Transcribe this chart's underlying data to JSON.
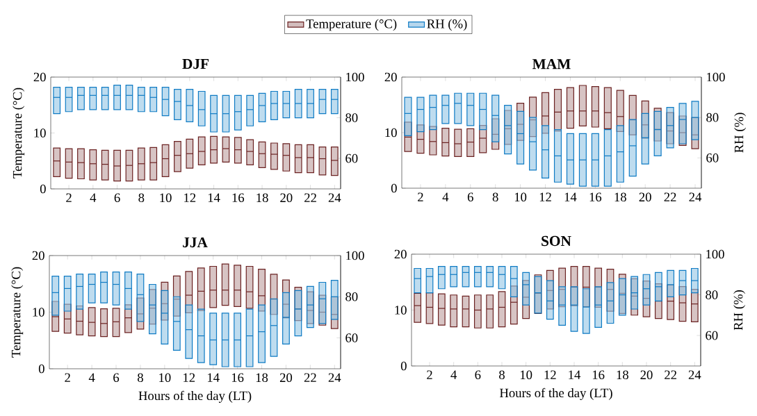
{
  "chart_data": [
    {
      "type": "box",
      "title": "DJF",
      "ylabel": "Temperature (°C)",
      "y2label": null,
      "legend": "top",
      "x": [
        1,
        2,
        3,
        4,
        5,
        6,
        7,
        8,
        9,
        10,
        11,
        12,
        13,
        14,
        15,
        16,
        17,
        18,
        19,
        20,
        21,
        22,
        23,
        24
      ],
      "xlim": [
        0.5,
        24.5
      ],
      "xticks": [
        2,
        4,
        6,
        8,
        10,
        12,
        14,
        16,
        18,
        20,
        22,
        24
      ],
      "ylim": [
        0,
        20
      ],
      "yticks": [
        0,
        10,
        20
      ],
      "y2lim": [
        45,
        100
      ],
      "y2ticks": [
        60,
        80,
        100
      ],
      "series": [
        {
          "name": "Temperature (°C)",
          "color": "#6b2222",
          "boxes": [
            {
              "low": 2.2,
              "q1": 2.2,
              "median": 5.0,
              "q3": 7.3,
              "high": 7.3
            },
            {
              "low": 1.9,
              "q1": 1.9,
              "median": 4.8,
              "q3": 7.2,
              "high": 7.2
            },
            {
              "low": 1.8,
              "q1": 1.8,
              "median": 4.7,
              "q3": 7.2,
              "high": 7.2
            },
            {
              "low": 1.6,
              "q1": 1.6,
              "median": 4.5,
              "q3": 7.0,
              "high": 7.0
            },
            {
              "low": 1.6,
              "q1": 1.6,
              "median": 4.4,
              "q3": 6.9,
              "high": 6.9
            },
            {
              "low": 1.4,
              "q1": 1.4,
              "median": 4.1,
              "q3": 6.9,
              "high": 6.9
            },
            {
              "low": 1.4,
              "q1": 1.4,
              "median": 4.2,
              "q3": 6.9,
              "high": 6.9
            },
            {
              "low": 1.6,
              "q1": 1.6,
              "median": 4.5,
              "q3": 7.3,
              "high": 7.3
            },
            {
              "low": 1.6,
              "q1": 1.6,
              "median": 4.7,
              "q3": 7.4,
              "high": 7.4
            },
            {
              "low": 2.2,
              "q1": 2.2,
              "median": 5.4,
              "q3": 7.9,
              "high": 7.9
            },
            {
              "low": 3.1,
              "q1": 3.1,
              "median": 6.0,
              "q3": 8.5,
              "high": 8.5
            },
            {
              "low": 3.7,
              "q1": 3.7,
              "median": 6.3,
              "q3": 8.9,
              "high": 8.9
            },
            {
              "low": 4.3,
              "q1": 4.3,
              "median": 6.7,
              "q3": 9.3,
              "high": 9.3
            },
            {
              "low": 4.6,
              "q1": 4.6,
              "median": 7.0,
              "q3": 9.4,
              "high": 9.4
            },
            {
              "low": 4.8,
              "q1": 4.8,
              "median": 7.2,
              "q3": 9.3,
              "high": 9.3
            },
            {
              "low": 4.6,
              "q1": 4.6,
              "median": 7.0,
              "q3": 9.2,
              "high": 9.2
            },
            {
              "low": 4.3,
              "q1": 4.3,
              "median": 6.7,
              "q3": 8.8,
              "high": 8.8
            },
            {
              "low": 3.8,
              "q1": 3.8,
              "median": 6.3,
              "q3": 8.4,
              "high": 8.4
            },
            {
              "low": 3.5,
              "q1": 3.5,
              "median": 6.2,
              "q3": 8.2,
              "high": 8.2
            },
            {
              "low": 3.2,
              "q1": 3.2,
              "median": 6.0,
              "q3": 8.1,
              "high": 8.1
            },
            {
              "low": 2.9,
              "q1": 2.9,
              "median": 5.6,
              "q3": 7.9,
              "high": 7.9
            },
            {
              "low": 2.9,
              "q1": 2.9,
              "median": 5.6,
              "q3": 7.9,
              "high": 7.9
            },
            {
              "low": 2.5,
              "q1": 2.5,
              "median": 5.4,
              "q3": 7.5,
              "high": 7.5
            },
            {
              "low": 2.4,
              "q1": 2.4,
              "median": 5.1,
              "q3": 7.5,
              "high": 7.5
            }
          ]
        },
        {
          "name": "RH (%)",
          "color": "#0f7bc4",
          "axis": "y2",
          "boxes": [
            {
              "low": 82,
              "q1": 82,
              "median": 90,
              "q3": 95,
              "high": 95
            },
            {
              "low": 83,
              "q1": 83,
              "median": 90,
              "q3": 95,
              "high": 95
            },
            {
              "low": 84,
              "q1": 84,
              "median": 91,
              "q3": 95,
              "high": 95
            },
            {
              "low": 84,
              "q1": 84,
              "median": 91,
              "q3": 95,
              "high": 95
            },
            {
              "low": 84,
              "q1": 84,
              "median": 91,
              "q3": 95,
              "high": 95
            },
            {
              "low": 84,
              "q1": 84,
              "median": 91,
              "q3": 96,
              "high": 96
            },
            {
              "low": 84,
              "q1": 84,
              "median": 91,
              "q3": 96,
              "high": 96
            },
            {
              "low": 83,
              "q1": 83,
              "median": 91,
              "q3": 95,
              "high": 95
            },
            {
              "low": 83,
              "q1": 83,
              "median": 90,
              "q3": 95,
              "high": 95
            },
            {
              "low": 81,
              "q1": 81,
              "median": 89,
              "q3": 95,
              "high": 95
            },
            {
              "low": 79,
              "q1": 79,
              "median": 88,
              "q3": 94,
              "high": 94
            },
            {
              "low": 78,
              "q1": 78,
              "median": 86,
              "q3": 94,
              "high": 94
            },
            {
              "low": 76,
              "q1": 76,
              "median": 84,
              "q3": 93,
              "high": 93
            },
            {
              "low": 73,
              "q1": 73,
              "median": 82,
              "q3": 91,
              "high": 91
            },
            {
              "low": 73,
              "q1": 73,
              "median": 82,
              "q3": 91,
              "high": 91
            },
            {
              "low": 74,
              "q1": 74,
              "median": 83,
              "q3": 91,
              "high": 91
            },
            {
              "low": 76,
              "q1": 76,
              "median": 84,
              "q3": 91,
              "high": 91
            },
            {
              "low": 78,
              "q1": 78,
              "median": 86,
              "q3": 92,
              "high": 92
            },
            {
              "low": 79,
              "q1": 79,
              "median": 87,
              "q3": 93,
              "high": 93
            },
            {
              "low": 80,
              "q1": 80,
              "median": 87,
              "q3": 93,
              "high": 93
            },
            {
              "low": 80,
              "q1": 80,
              "median": 87,
              "q3": 94,
              "high": 94
            },
            {
              "low": 80,
              "q1": 80,
              "median": 87,
              "q3": 94,
              "high": 94
            },
            {
              "low": 82,
              "q1": 82,
              "median": 89,
              "q3": 94,
              "high": 94
            },
            {
              "low": 82,
              "q1": 82,
              "median": 89,
              "q3": 94,
              "high": 94
            }
          ]
        }
      ]
    },
    {
      "type": "box",
      "title": "MAM",
      "y2label": "RH (%)",
      "x": [
        1,
        2,
        3,
        4,
        5,
        6,
        7,
        8,
        9,
        10,
        11,
        12,
        13,
        14,
        15,
        16,
        17,
        18,
        19,
        20,
        21,
        22,
        23,
        24
      ],
      "xlim": [
        0.5,
        24.5
      ],
      "xticks": [
        2,
        4,
        6,
        8,
        10,
        12,
        14,
        16,
        18,
        20,
        22,
        24
      ],
      "ylim": [
        0,
        20
      ],
      "yticks": [
        0,
        10,
        20
      ],
      "y2lim": [
        45,
        100
      ],
      "y2ticks": [
        60,
        80,
        100
      ],
      "series": [
        {
          "color": "#6b2222",
          "boxes": [
            {
              "low": 6.6,
              "q1": 6.6,
              "median": 9.2,
              "q3": 11.9,
              "high": 11.9
            },
            {
              "low": 6.3,
              "q1": 6.3,
              "median": 8.8,
              "q3": 11.4,
              "high": 11.4
            },
            {
              "low": 6.0,
              "q1": 6.0,
              "median": 8.4,
              "q3": 11.1,
              "high": 11.1
            },
            {
              "low": 5.8,
              "q1": 5.8,
              "median": 8.2,
              "q3": 10.8,
              "high": 10.8
            },
            {
              "low": 5.7,
              "q1": 5.7,
              "median": 8.0,
              "q3": 10.6,
              "high": 10.6
            },
            {
              "low": 5.7,
              "q1": 5.7,
              "median": 8.3,
              "q3": 10.7,
              "high": 10.7
            },
            {
              "low": 6.4,
              "q1": 6.4,
              "median": 9.0,
              "q3": 11.3,
              "high": 11.3
            },
            {
              "low": 7.0,
              "q1": 7.0,
              "median": 9.7,
              "q3": 12.5,
              "high": 12.5
            },
            {
              "low": 7.9,
              "q1": 7.9,
              "median": 10.7,
              "q3": 14.0,
              "high": 14.0
            },
            {
              "low": 8.6,
              "q1": 8.6,
              "median": 11.5,
              "q3": 15.3,
              "high": 15.3
            },
            {
              "low": 9.3,
              "q1": 9.3,
              "median": 12.3,
              "q3": 16.4,
              "high": 16.4
            },
            {
              "low": 9.9,
              "q1": 9.9,
              "median": 13.0,
              "q3": 17.2,
              "high": 17.2
            },
            {
              "low": 10.3,
              "q1": 10.3,
              "median": 13.7,
              "q3": 17.8,
              "high": 17.8
            },
            {
              "low": 10.8,
              "q1": 10.8,
              "median": 13.9,
              "q3": 18.1,
              "high": 18.1
            },
            {
              "low": 11.2,
              "q1": 11.2,
              "median": 13.9,
              "q3": 18.5,
              "high": 18.5
            },
            {
              "low": 11.0,
              "q1": 11.0,
              "median": 13.9,
              "q3": 18.3,
              "high": 18.3
            },
            {
              "low": 10.7,
              "q1": 10.7,
              "median": 13.6,
              "q3": 18.1,
              "high": 18.1
            },
            {
              "low": 10.2,
              "q1": 10.2,
              "median": 12.9,
              "q3": 17.6,
              "high": 17.6
            },
            {
              "low": 9.6,
              "q1": 9.6,
              "median": 12.3,
              "q3": 16.7,
              "high": 16.7
            },
            {
              "low": 9.0,
              "q1": 9.0,
              "median": 11.4,
              "q3": 15.7,
              "high": 15.7
            },
            {
              "low": 8.5,
              "q1": 8.5,
              "median": 10.6,
              "q3": 14.4,
              "high": 14.4
            },
            {
              "low": 8.0,
              "q1": 8.0,
              "median": 10.3,
              "q3": 13.6,
              "high": 13.6
            },
            {
              "low": 7.7,
              "q1": 7.7,
              "median": 10.0,
              "q3": 13.0,
              "high": 13.0
            },
            {
              "low": 7.1,
              "q1": 7.1,
              "median": 9.6,
              "q3": 12.7,
              "high": 12.7
            }
          ]
        },
        {
          "color": "#0f7bc4",
          "axis": "y2",
          "boxes": [
            {
              "low": 71,
              "q1": 71,
              "median": 82,
              "q3": 90,
              "high": 90
            },
            {
              "low": 73,
              "q1": 73,
              "median": 84,
              "q3": 90,
              "high": 90
            },
            {
              "low": 74,
              "q1": 74,
              "median": 85,
              "q3": 91,
              "high": 91
            },
            {
              "low": 77,
              "q1": 77,
              "median": 86,
              "q3": 91,
              "high": 91
            },
            {
              "low": 77,
              "q1": 77,
              "median": 87,
              "q3": 92,
              "high": 92
            },
            {
              "low": 76,
              "q1": 76,
              "median": 86,
              "q3": 92,
              "high": 92
            },
            {
              "low": 74,
              "q1": 74,
              "median": 84,
              "q3": 92,
              "high": 92
            },
            {
              "low": 68,
              "q1": 68,
              "median": 81,
              "q3": 91,
              "high": 91
            },
            {
              "low": 62,
              "q1": 62,
              "median": 76,
              "q3": 86,
              "high": 86
            },
            {
              "low": 57,
              "q1": 57,
              "median": 72,
              "q3": 83,
              "high": 83
            },
            {
              "low": 54,
              "q1": 54,
              "median": 68,
              "q3": 80,
              "high": 80
            },
            {
              "low": 50,
              "q1": 50,
              "median": 64,
              "q3": 76,
              "high": 76
            },
            {
              "low": 48,
              "q1": 48,
              "median": 61,
              "q3": 74,
              "high": 74
            },
            {
              "low": 47,
              "q1": 47,
              "median": 59,
              "q3": 72,
              "high": 72
            },
            {
              "low": 46,
              "q1": 46,
              "median": 59,
              "q3": 72,
              "high": 72
            },
            {
              "low": 46,
              "q1": 46,
              "median": 59,
              "q3": 72,
              "high": 72
            },
            {
              "low": 46,
              "q1": 46,
              "median": 61,
              "q3": 74,
              "high": 74
            },
            {
              "low": 48,
              "q1": 48,
              "median": 63,
              "q3": 76,
              "high": 76
            },
            {
              "low": 51,
              "q1": 51,
              "median": 66,
              "q3": 79,
              "high": 79
            },
            {
              "low": 57,
              "q1": 57,
              "median": 70,
              "q3": 82,
              "high": 82
            },
            {
              "low": 61,
              "q1": 61,
              "median": 74,
              "q3": 83,
              "high": 83
            },
            {
              "low": 65,
              "q1": 65,
              "median": 76,
              "q3": 85,
              "high": 85
            },
            {
              "low": 67,
              "q1": 67,
              "median": 79,
              "q3": 87,
              "high": 87
            },
            {
              "low": 69,
              "q1": 69,
              "median": 80,
              "q3": 88,
              "high": 88
            }
          ]
        }
      ]
    },
    {
      "type": "box",
      "title": "JJA",
      "ylabel": "Temperature (°C)",
      "xlabel": "Hours of the day (LT)",
      "x": [
        1,
        2,
        3,
        4,
        5,
        6,
        7,
        8,
        9,
        10,
        11,
        12,
        13,
        14,
        15,
        16,
        17,
        18,
        19,
        20,
        21,
        22,
        23,
        24
      ],
      "xlim": [
        0.5,
        24.5
      ],
      "xticks": [
        2,
        4,
        6,
        8,
        10,
        12,
        14,
        16,
        18,
        20,
        22,
        24
      ],
      "ylim": [
        0,
        20
      ],
      "yticks": [
        0,
        10,
        20
      ],
      "y2lim": [
        45,
        100
      ],
      "y2ticks": [
        60,
        80,
        100
      ],
      "series": [
        {
          "color": "#6b2222",
          "boxes": [
            {
              "low": 6.6,
              "q1": 6.6,
              "median": 9.2,
              "q3": 11.9,
              "high": 11.9
            },
            {
              "low": 6.3,
              "q1": 6.3,
              "median": 8.8,
              "q3": 11.4,
              "high": 11.4
            },
            {
              "low": 6.0,
              "q1": 6.0,
              "median": 8.4,
              "q3": 11.1,
              "high": 11.1
            },
            {
              "low": 5.8,
              "q1": 5.8,
              "median": 8.2,
              "q3": 10.8,
              "high": 10.8
            },
            {
              "low": 5.7,
              "q1": 5.7,
              "median": 8.0,
              "q3": 10.6,
              "high": 10.6
            },
            {
              "low": 5.7,
              "q1": 5.7,
              "median": 8.3,
              "q3": 10.7,
              "high": 10.7
            },
            {
              "low": 6.4,
              "q1": 6.4,
              "median": 9.0,
              "q3": 11.3,
              "high": 11.3
            },
            {
              "low": 7.0,
              "q1": 7.0,
              "median": 9.7,
              "q3": 12.5,
              "high": 12.5
            },
            {
              "low": 7.9,
              "q1": 7.9,
              "median": 10.7,
              "q3": 14.0,
              "high": 14.0
            },
            {
              "low": 8.6,
              "q1": 8.6,
              "median": 11.5,
              "q3": 15.3,
              "high": 15.3
            },
            {
              "low": 9.3,
              "q1": 9.3,
              "median": 12.3,
              "q3": 16.4,
              "high": 16.4
            },
            {
              "low": 9.9,
              "q1": 9.9,
              "median": 13.0,
              "q3": 17.2,
              "high": 17.2
            },
            {
              "low": 10.3,
              "q1": 10.3,
              "median": 13.7,
              "q3": 17.8,
              "high": 17.8
            },
            {
              "low": 10.8,
              "q1": 10.8,
              "median": 13.9,
              "q3": 18.1,
              "high": 18.1
            },
            {
              "low": 11.2,
              "q1": 11.2,
              "median": 13.9,
              "q3": 18.5,
              "high": 18.5
            },
            {
              "low": 11.0,
              "q1": 11.0,
              "median": 13.9,
              "q3": 18.3,
              "high": 18.3
            },
            {
              "low": 10.7,
              "q1": 10.7,
              "median": 13.6,
              "q3": 18.1,
              "high": 18.1
            },
            {
              "low": 10.2,
              "q1": 10.2,
              "median": 12.9,
              "q3": 17.6,
              "high": 17.6
            },
            {
              "low": 9.6,
              "q1": 9.6,
              "median": 12.3,
              "q3": 16.7,
              "high": 16.7
            },
            {
              "low": 9.0,
              "q1": 9.0,
              "median": 11.4,
              "q3": 15.7,
              "high": 15.7
            },
            {
              "low": 8.5,
              "q1": 8.5,
              "median": 10.6,
              "q3": 14.4,
              "high": 14.4
            },
            {
              "low": 8.0,
              "q1": 8.0,
              "median": 10.3,
              "q3": 13.6,
              "high": 13.6
            },
            {
              "low": 7.7,
              "q1": 7.7,
              "median": 10.0,
              "q3": 13.0,
              "high": 13.0
            },
            {
              "low": 7.1,
              "q1": 7.1,
              "median": 9.6,
              "q3": 12.7,
              "high": 12.7
            }
          ]
        },
        {
          "color": "#0f7bc4",
          "axis": "y2",
          "boxes": [
            {
              "low": 71,
              "q1": 71,
              "median": 82,
              "q3": 90,
              "high": 90
            },
            {
              "low": 73,
              "q1": 73,
              "median": 84,
              "q3": 90,
              "high": 90
            },
            {
              "low": 74,
              "q1": 74,
              "median": 85,
              "q3": 91,
              "high": 91
            },
            {
              "low": 77,
              "q1": 77,
              "median": 86,
              "q3": 91,
              "high": 91
            },
            {
              "low": 77,
              "q1": 77,
              "median": 87,
              "q3": 92,
              "high": 92
            },
            {
              "low": 76,
              "q1": 76,
              "median": 86,
              "q3": 92,
              "high": 92
            },
            {
              "low": 74,
              "q1": 74,
              "median": 84,
              "q3": 92,
              "high": 92
            },
            {
              "low": 68,
              "q1": 68,
              "median": 81,
              "q3": 91,
              "high": 91
            },
            {
              "low": 62,
              "q1": 62,
              "median": 76,
              "q3": 86,
              "high": 86
            },
            {
              "low": 57,
              "q1": 57,
              "median": 72,
              "q3": 83,
              "high": 83
            },
            {
              "low": 54,
              "q1": 54,
              "median": 68,
              "q3": 80,
              "high": 80
            },
            {
              "low": 50,
              "q1": 50,
              "median": 64,
              "q3": 76,
              "high": 76
            },
            {
              "low": 48,
              "q1": 48,
              "median": 61,
              "q3": 74,
              "high": 74
            },
            {
              "low": 47,
              "q1": 47,
              "median": 59,
              "q3": 72,
              "high": 72
            },
            {
              "low": 46,
              "q1": 46,
              "median": 59,
              "q3": 72,
              "high": 72
            },
            {
              "low": 46,
              "q1": 46,
              "median": 59,
              "q3": 72,
              "high": 72
            },
            {
              "low": 46,
              "q1": 46,
              "median": 61,
              "q3": 74,
              "high": 74
            },
            {
              "low": 48,
              "q1": 48,
              "median": 63,
              "q3": 76,
              "high": 76
            },
            {
              "low": 51,
              "q1": 51,
              "median": 66,
              "q3": 79,
              "high": 79
            },
            {
              "low": 57,
              "q1": 57,
              "median": 70,
              "q3": 82,
              "high": 82
            },
            {
              "low": 61,
              "q1": 61,
              "median": 74,
              "q3": 83,
              "high": 83
            },
            {
              "low": 65,
              "q1": 65,
              "median": 76,
              "q3": 85,
              "high": 85
            },
            {
              "low": 67,
              "q1": 67,
              "median": 79,
              "q3": 87,
              "high": 87
            },
            {
              "low": 69,
              "q1": 69,
              "median": 80,
              "q3": 88,
              "high": 88
            }
          ]
        }
      ]
    },
    {
      "type": "box",
      "title": "SON",
      "y2label": "RH (%)",
      "xlabel": "Hours of the day (LT)",
      "x": [
        1,
        2,
        3,
        4,
        5,
        6,
        7,
        8,
        9,
        10,
        11,
        12,
        13,
        14,
        15,
        16,
        17,
        18,
        19,
        20,
        21,
        22,
        23,
        24
      ],
      "xlim": [
        0.5,
        24.5
      ],
      "xticks": [
        2,
        4,
        6,
        8,
        10,
        12,
        14,
        16,
        18,
        20,
        22,
        24
      ],
      "ylim": [
        0,
        20
      ],
      "yticks": [
        0,
        10,
        20
      ],
      "y2lim": [
        45,
        100
      ],
      "y2ticks": [
        60,
        80,
        100
      ],
      "series": [
        {
          "color": "#6b2222",
          "boxes": [
            {
              "low": 7.8,
              "q1": 7.8,
              "median": 10.8,
              "q3": 13.0,
              "high": 13.0
            },
            {
              "low": 7.6,
              "q1": 7.6,
              "median": 10.5,
              "q3": 13.1,
              "high": 13.1
            },
            {
              "low": 7.3,
              "q1": 7.3,
              "median": 10.3,
              "q3": 12.9,
              "high": 12.9
            },
            {
              "low": 7.0,
              "q1": 7.0,
              "median": 10.2,
              "q3": 12.7,
              "high": 12.7
            },
            {
              "low": 7.0,
              "q1": 7.0,
              "median": 10.2,
              "q3": 12.5,
              "high": 12.5
            },
            {
              "low": 6.8,
              "q1": 6.8,
              "median": 10.0,
              "q3": 12.7,
              "high": 12.7
            },
            {
              "low": 6.8,
              "q1": 6.8,
              "median": 10.2,
              "q3": 12.7,
              "high": 12.7
            },
            {
              "low": 7.0,
              "q1": 7.0,
              "median": 10.5,
              "q3": 13.3,
              "high": 13.3
            },
            {
              "low": 7.5,
              "q1": 7.5,
              "median": 11.4,
              "q3": 14.3,
              "high": 14.3
            },
            {
              "low": 8.5,
              "q1": 8.5,
              "median": 12.3,
              "q3": 15.3,
              "high": 15.3
            },
            {
              "low": 9.4,
              "q1": 9.4,
              "median": 13.0,
              "q3": 16.3,
              "high": 16.3
            },
            {
              "low": 10.2,
              "q1": 10.2,
              "median": 13.5,
              "q3": 17.1,
              "high": 17.1
            },
            {
              "low": 10.6,
              "q1": 10.6,
              "median": 13.7,
              "q3": 17.5,
              "high": 17.5
            },
            {
              "low": 10.8,
              "q1": 10.8,
              "median": 14.1,
              "q3": 17.8,
              "high": 17.8
            },
            {
              "low": 10.6,
              "q1": 10.6,
              "median": 14.1,
              "q3": 17.8,
              "high": 17.8
            },
            {
              "low": 10.5,
              "q1": 10.5,
              "median": 14.1,
              "q3": 17.5,
              "high": 17.5
            },
            {
              "low": 9.8,
              "q1": 9.8,
              "median": 13.7,
              "q3": 17.3,
              "high": 17.3
            },
            {
              "low": 9.4,
              "q1": 9.4,
              "median": 13.0,
              "q3": 16.4,
              "high": 16.4
            },
            {
              "low": 9.1,
              "q1": 9.1,
              "median": 12.5,
              "q3": 15.6,
              "high": 15.6
            },
            {
              "low": 8.8,
              "q1": 8.8,
              "median": 12.1,
              "q3": 15.2,
              "high": 15.2
            },
            {
              "low": 8.5,
              "q1": 8.5,
              "median": 11.6,
              "q3": 14.7,
              "high": 14.7
            },
            {
              "low": 8.3,
              "q1": 8.3,
              "median": 11.6,
              "q3": 14.5,
              "high": 14.5
            },
            {
              "low": 8.0,
              "q1": 8.0,
              "median": 11.3,
              "q3": 14.2,
              "high": 14.2
            },
            {
              "low": 7.9,
              "q1": 7.9,
              "median": 11.1,
              "q3": 13.7,
              "high": 13.7
            }
          ]
        },
        {
          "color": "#0f7bc4",
          "axis": "y2",
          "boxes": [
            {
              "low": 81,
              "q1": 81,
              "median": 88,
              "q3": 93,
              "high": 93
            },
            {
              "low": 81,
              "q1": 81,
              "median": 89,
              "q3": 93,
              "high": 93
            },
            {
              "low": 83,
              "q1": 83,
              "median": 90,
              "q3": 94,
              "high": 94
            },
            {
              "low": 84,
              "q1": 84,
              "median": 90,
              "q3": 94,
              "high": 94
            },
            {
              "low": 84,
              "q1": 84,
              "median": 91,
              "q3": 94,
              "high": 94
            },
            {
              "low": 84,
              "q1": 84,
              "median": 91,
              "q3": 94,
              "high": 94
            },
            {
              "low": 84,
              "q1": 84,
              "median": 91,
              "q3": 94,
              "high": 94
            },
            {
              "low": 83,
              "q1": 83,
              "median": 90,
              "q3": 94,
              "high": 94
            },
            {
              "low": 79,
              "q1": 79,
              "median": 88,
              "q3": 94,
              "high": 94
            },
            {
              "low": 75,
              "q1": 75,
              "median": 85,
              "q3": 91,
              "high": 91
            },
            {
              "low": 71,
              "q1": 71,
              "median": 81,
              "q3": 89,
              "high": 89
            },
            {
              "low": 68,
              "q1": 68,
              "median": 77,
              "q3": 87,
              "high": 87
            },
            {
              "low": 65,
              "q1": 65,
              "median": 75,
              "q3": 84,
              "high": 84
            },
            {
              "low": 62,
              "q1": 62,
              "median": 75,
              "q3": 84,
              "high": 84
            },
            {
              "low": 61,
              "q1": 61,
              "median": 74,
              "q3": 83,
              "high": 83
            },
            {
              "low": 64,
              "q1": 64,
              "median": 75,
              "q3": 84,
              "high": 84
            },
            {
              "low": 66,
              "q1": 66,
              "median": 77,
              "q3": 86,
              "high": 86
            },
            {
              "low": 70,
              "q1": 70,
              "median": 80,
              "q3": 88,
              "high": 88
            },
            {
              "low": 73,
              "q1": 73,
              "median": 81,
              "q3": 89,
              "high": 89
            },
            {
              "low": 75,
              "q1": 75,
              "median": 83,
              "q3": 90,
              "high": 90
            },
            {
              "low": 77,
              "q1": 77,
              "median": 84,
              "q3": 91,
              "high": 91
            },
            {
              "low": 79,
              "q1": 79,
              "median": 85,
              "q3": 92,
              "high": 92
            },
            {
              "low": 80,
              "q1": 80,
              "median": 87,
              "q3": 92,
              "high": 92
            },
            {
              "low": 81,
              "q1": 81,
              "median": 87,
              "q3": 93,
              "high": 93
            }
          ]
        }
      ]
    }
  ]
}
